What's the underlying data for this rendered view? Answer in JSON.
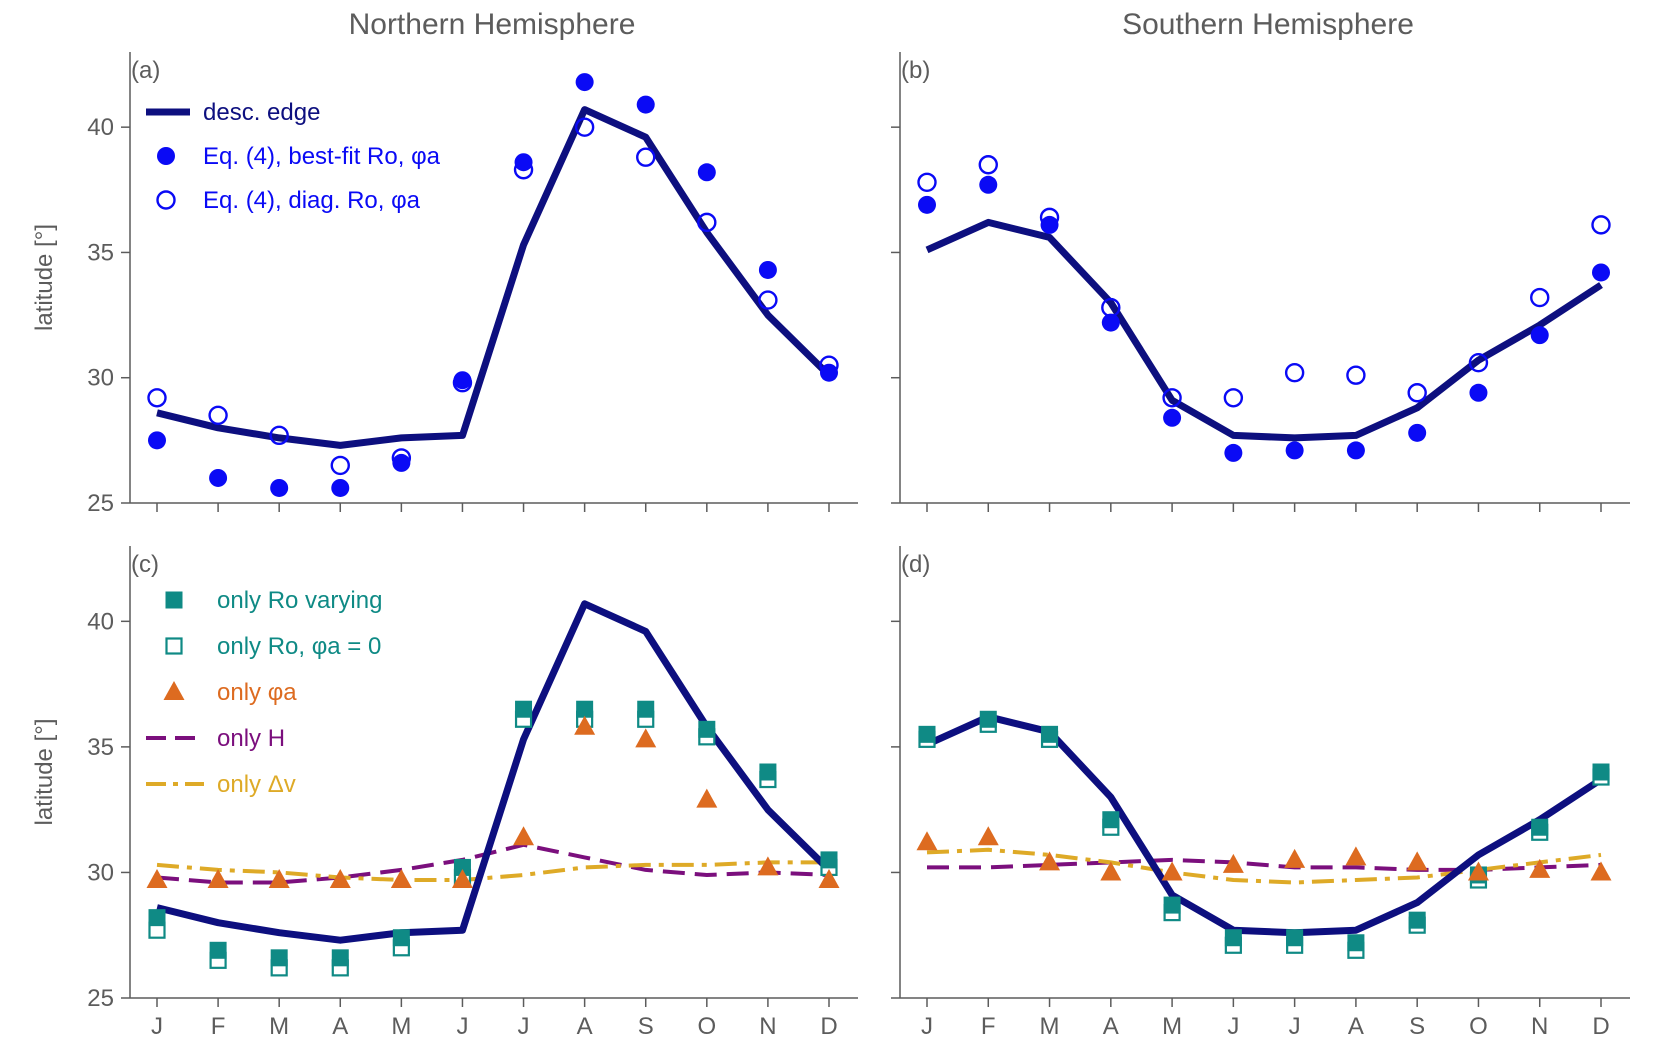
{
  "chart_data": {
    "type": "line",
    "column_titles": [
      "Northern Hemisphere",
      "Southern Hemisphere"
    ],
    "categories": [
      "J",
      "F",
      "M",
      "A",
      "M",
      "J",
      "J",
      "A",
      "S",
      "O",
      "N",
      "D"
    ],
    "ylabel": "latitude [°]",
    "ylim": [
      25,
      43
    ],
    "yticks": [
      25,
      30,
      35,
      40
    ],
    "colors": {
      "edge": "#0d0f7f",
      "fit": "#0a0af5",
      "ro": "#0f8a85",
      "phi": "#dd6b20",
      "H": "#7b0f7d",
      "dv": "#deaa27"
    },
    "legend_top": [
      {
        "key": "edge",
        "marker": "line",
        "text": "desc. edge"
      },
      {
        "key": "fit",
        "marker": "filled-circle",
        "text": "Eq. (4), best-fit Ro, φa"
      },
      {
        "key": "fit",
        "marker": "open-circle",
        "text": "Eq. (4), diag. Ro, φa"
      }
    ],
    "legend_bottom": [
      {
        "key": "ro",
        "marker": "filled-square",
        "text": "only Ro varying"
      },
      {
        "key": "ro",
        "marker": "open-square",
        "text": "only Ro, φa = 0"
      },
      {
        "key": "phi",
        "marker": "triangle",
        "text": "only φa"
      },
      {
        "key": "H",
        "marker": "dash",
        "text": "only H"
      },
      {
        "key": "dv",
        "marker": "dashdot",
        "text": "only Δv"
      }
    ],
    "panels": [
      {
        "label": "(a)",
        "series": [
          {
            "name": "desc. edge",
            "style": "line",
            "values": [
              28.6,
              28.0,
              27.6,
              27.3,
              27.6,
              27.7,
              35.3,
              40.7,
              39.6,
              35.8,
              32.5,
              30.1
            ]
          },
          {
            "name": "Eq. (4), best-fit Ro, φa",
            "style": "filled-circle",
            "values": [
              27.5,
              26.0,
              25.6,
              25.6,
              26.6,
              29.9,
              38.6,
              41.8,
              40.9,
              38.2,
              34.3,
              30.2
            ]
          },
          {
            "name": "Eq. (4), diag. Ro, φa",
            "style": "open-circle",
            "values": [
              29.2,
              28.5,
              27.7,
              26.5,
              26.8,
              29.8,
              38.3,
              40.0,
              38.8,
              36.2,
              33.1,
              30.5
            ]
          }
        ]
      },
      {
        "label": "(b)",
        "series": [
          {
            "name": "desc. edge",
            "style": "line",
            "values": [
              35.1,
              36.2,
              35.6,
              33.0,
              29.1,
              27.7,
              27.6,
              27.7,
              28.8,
              30.7,
              32.1,
              33.7
            ]
          },
          {
            "name": "Eq. (4), best-fit Ro, φa",
            "style": "filled-circle",
            "values": [
              36.9,
              37.7,
              36.1,
              32.2,
              28.4,
              27.0,
              27.1,
              27.1,
              27.8,
              29.4,
              31.7,
              34.2
            ]
          },
          {
            "name": "Eq. (4), diag. Ro, φa",
            "style": "open-circle",
            "values": [
              37.8,
              38.5,
              36.4,
              32.8,
              29.2,
              29.2,
              30.2,
              30.1,
              29.4,
              30.6,
              33.2,
              36.1
            ]
          }
        ]
      },
      {
        "label": "(c)",
        "series": [
          {
            "name": "desc. edge",
            "style": "line",
            "values": [
              28.6,
              28.0,
              27.6,
              27.3,
              27.6,
              27.7,
              35.3,
              40.7,
              39.6,
              35.8,
              32.5,
              30.1
            ]
          },
          {
            "name": "only Ro varying",
            "style": "filled-square",
            "values": [
              28.2,
              26.9,
              26.6,
              26.6,
              27.4,
              30.2,
              36.5,
              36.5,
              36.5,
              35.7,
              34.0,
              30.5
            ]
          },
          {
            "name": "only Ro, φa = 0",
            "style": "open-square",
            "values": [
              27.7,
              26.5,
              26.2,
              26.2,
              27.0,
              29.8,
              36.1,
              36.1,
              36.1,
              35.4,
              33.7,
              30.2
            ]
          },
          {
            "name": "only φa",
            "style": "triangle",
            "values": [
              29.7,
              29.7,
              29.7,
              29.7,
              29.7,
              29.7,
              31.4,
              35.8,
              35.3,
              32.9,
              30.2,
              29.7
            ]
          },
          {
            "name": "only H",
            "style": "dash",
            "values": [
              29.8,
              29.6,
              29.6,
              29.8,
              30.1,
              30.5,
              31.1,
              30.6,
              30.1,
              29.9,
              30.0,
              29.9
            ]
          },
          {
            "name": "only Δv",
            "style": "dashdot",
            "values": [
              30.3,
              30.1,
              30.0,
              29.8,
              29.7,
              29.7,
              29.9,
              30.2,
              30.3,
              30.3,
              30.4,
              30.4
            ]
          }
        ]
      },
      {
        "label": "(d)",
        "series": [
          {
            "name": "desc. edge",
            "style": "line",
            "values": [
              35.1,
              36.2,
              35.6,
              33.0,
              29.1,
              27.7,
              27.6,
              27.7,
              28.8,
              30.7,
              32.1,
              33.7
            ]
          },
          {
            "name": "only Ro varying",
            "style": "filled-square",
            "values": [
              35.5,
              36.1,
              35.5,
              32.1,
              28.7,
              27.4,
              27.4,
              27.2,
              28.1,
              29.9,
              31.8,
              34.0
            ]
          },
          {
            "name": "only Ro, φa = 0",
            "style": "open-square",
            "values": [
              35.3,
              35.9,
              35.3,
              31.8,
              28.4,
              27.1,
              27.1,
              26.9,
              27.9,
              29.7,
              31.6,
              33.8
            ]
          },
          {
            "name": "only φa",
            "style": "triangle",
            "values": [
              31.2,
              31.4,
              30.4,
              30.0,
              30.0,
              30.3,
              30.5,
              30.6,
              30.4,
              30.0,
              30.1,
              30.0
            ]
          },
          {
            "name": "only H",
            "style": "dash",
            "values": [
              30.2,
              30.2,
              30.3,
              30.4,
              30.5,
              30.4,
              30.2,
              30.2,
              30.1,
              30.1,
              30.2,
              30.3
            ]
          },
          {
            "name": "only Δv",
            "style": "dashdot",
            "values": [
              30.8,
              30.9,
              30.7,
              30.4,
              30.0,
              29.7,
              29.6,
              29.7,
              29.8,
              30.1,
              30.4,
              30.7
            ]
          }
        ]
      }
    ]
  }
}
